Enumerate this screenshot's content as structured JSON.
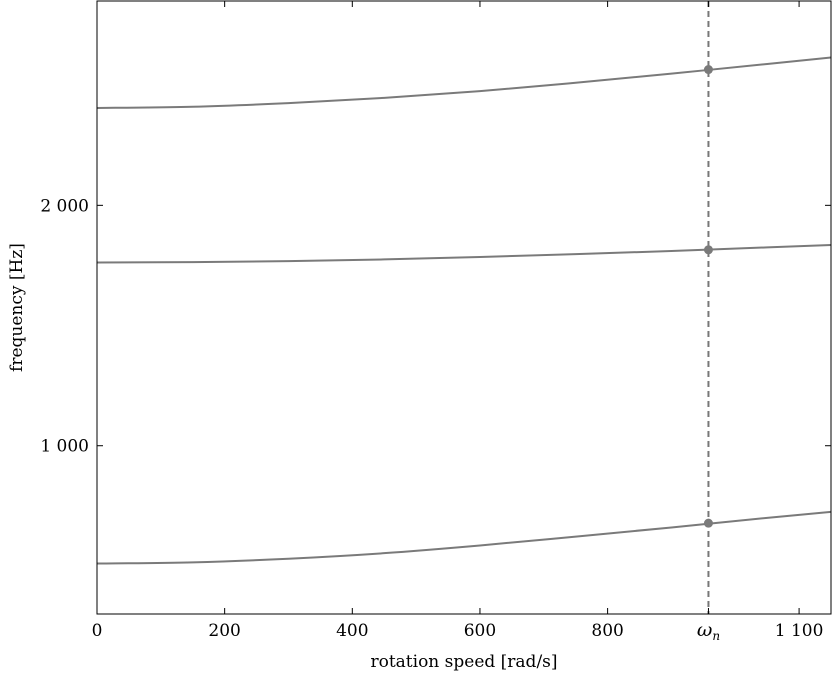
{
  "chart_data": {
    "type": "line",
    "xlabel": "rotation speed [rad/s]",
    "ylabel": "frequency [Hz]",
    "xlim": [
      0,
      1150
    ],
    "ylim": [
      300,
      2850
    ],
    "x_ticks": [
      {
        "value": 0,
        "label": "0"
      },
      {
        "value": 200,
        "label": "200"
      },
      {
        "value": 400,
        "label": "400"
      },
      {
        "value": 600,
        "label": "600"
      },
      {
        "value": 800,
        "label": "800"
      },
      {
        "value": 1100,
        "label": "1 100"
      }
    ],
    "y_ticks": [
      {
        "value": 1000,
        "label": "1 000"
      },
      {
        "value": 2000,
        "label": "2 000"
      }
    ],
    "vline": {
      "x": 958,
      "label_main": "ω",
      "label_sub": "n",
      "color": "#777777",
      "style": "dashed"
    },
    "series": [
      {
        "color": "#7a7a7a",
        "x": [
          0,
          150,
          300,
          450,
          600,
          750,
          900,
          1050,
          1150
        ],
        "y": [
          510,
          515,
          530,
          553,
          585,
          622,
          660,
          700,
          725
        ]
      },
      {
        "color": "#7a7a7a",
        "x": [
          0,
          150,
          300,
          450,
          600,
          750,
          900,
          1050,
          1150
        ],
        "y": [
          1762,
          1764,
          1768,
          1775,
          1785,
          1797,
          1810,
          1825,
          1835
        ]
      },
      {
        "color": "#7a7a7a",
        "x": [
          0,
          150,
          300,
          450,
          600,
          750,
          900,
          1050,
          1150
        ],
        "y": [
          2405,
          2410,
          2425,
          2447,
          2475,
          2510,
          2548,
          2588,
          2615
        ]
      }
    ],
    "markers": [
      {
        "x": 958,
        "y": 678
      },
      {
        "x": 958,
        "y": 1815
      },
      {
        "x": 958,
        "y": 2565
      }
    ],
    "grid": false,
    "legend": "none"
  }
}
